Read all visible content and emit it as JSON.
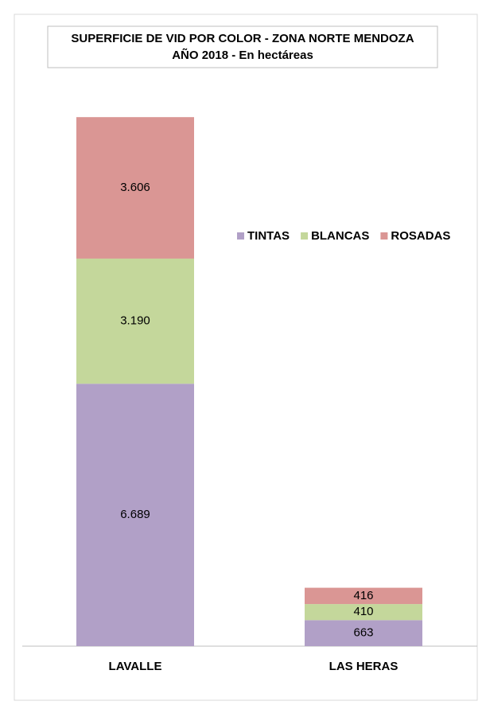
{
  "chart_data": {
    "type": "stacked_bar",
    "title": "SUPERFICIE DE VID POR COLOR - ZONA NORTE MENDOZA",
    "subtitle": "AÑO 2018 - En hectáreas",
    "categories": [
      "LAVALLE",
      "LAS HERAS"
    ],
    "series": [
      {
        "name": "TINTAS",
        "color": "#b1a0c7",
        "values": [
          6689,
          663
        ],
        "value_labels": [
          "6.689",
          "663"
        ]
      },
      {
        "name": "BLANCAS",
        "color": "#c4d79b",
        "values": [
          3190,
          410
        ],
        "value_labels": [
          "3.190",
          "410"
        ]
      },
      {
        "name": "ROSADAS",
        "color": "#da9694",
        "values": [
          3606,
          416
        ],
        "value_labels": [
          "3.606",
          "416"
        ]
      }
    ]
  }
}
